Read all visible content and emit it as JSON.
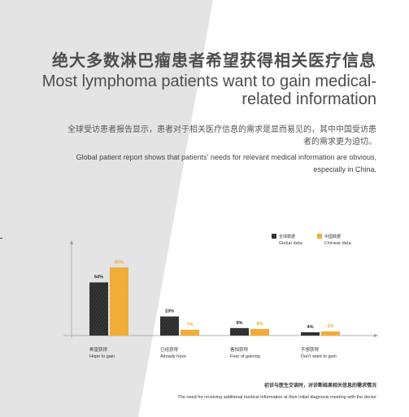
{
  "title_cn": "绝大多数淋巴瘤患者希望获得相关医疗信息",
  "title_en": "Most lymphoma patients want to gain medical-related information",
  "description_cn": "全球受访患者报告显示，患者对于相关医疗信息的需求是显而易见的，其中中国受访患者的需求更为迫切。",
  "description_en": "Global patient report shows that patients' needs for relevant medical information are obvious, especially in China.",
  "colors": {
    "global": "#2b2b2b",
    "china": "#f0a830",
    "background_shape": "#e4e4e4"
  },
  "chart_data": {
    "type": "bar",
    "categories": [
      {
        "cn": "希望获得",
        "en": "Hope to gain"
      },
      {
        "cn": "已经获得",
        "en": "Already have"
      },
      {
        "cn": "害怕获得",
        "en": "Fear of gaining"
      },
      {
        "cn": "不想获得",
        "en": "Don't want to gain"
      }
    ],
    "series": [
      {
        "name_cn": "全球数据",
        "name_en": "Global data",
        "values": [
          64,
          23,
          9,
          4
        ],
        "labels": [
          "64%",
          "23%",
          "9%",
          "4%"
        ]
      },
      {
        "name_cn": "中国数据",
        "name_en": "Chinese data",
        "values": [
          82,
          7,
          8,
          5
        ],
        "labels": [
          "82%",
          "7%",
          "8%",
          "5%"
        ]
      }
    ],
    "ylim": [
      0,
      100
    ],
    "grid": false,
    "legend_position": "top-right",
    "caption_cn": "初诊与医生交谈时，对诊断结果相关信息的需求情况",
    "caption_en": "The need for receiving additional medical information at their initial diagnosis meeting with the doctor"
  }
}
